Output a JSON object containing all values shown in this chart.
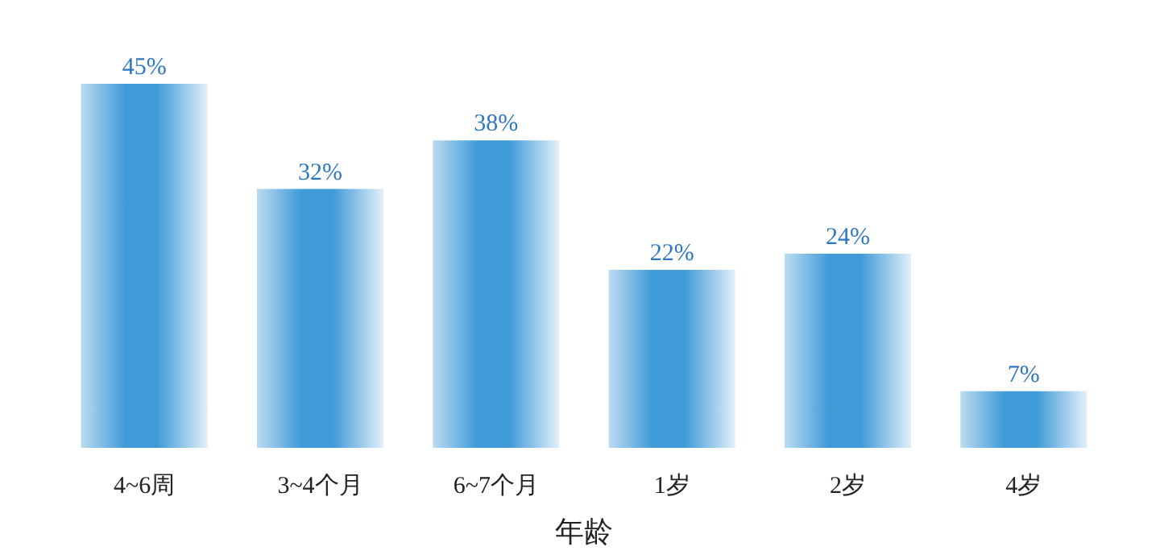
{
  "chart_data": {
    "type": "bar",
    "xlabel": "年龄",
    "categories": [
      "4~6周",
      "3~4个月",
      "6~7个月",
      "1岁",
      "2岁",
      "4岁"
    ],
    "values": [
      45,
      32,
      38,
      22,
      24,
      7
    ],
    "value_labels": [
      "45%",
      "32%",
      "38%",
      "22%",
      "24%",
      "7%"
    ],
    "color": "#3f9ad8"
  }
}
